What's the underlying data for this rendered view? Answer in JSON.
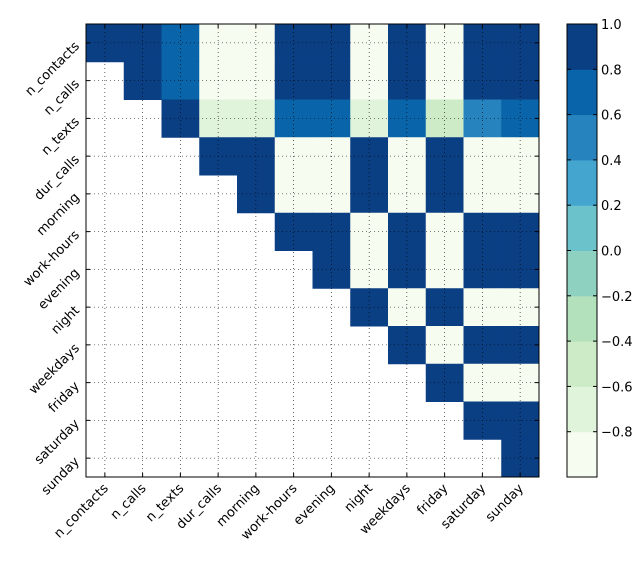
{
  "chart_data": {
    "type": "heatmap",
    "title": "",
    "x_labels": [
      "n_contacts",
      "n_calls",
      "n_texts",
      "dur_calls",
      "morning",
      "work-hours",
      "evening",
      "night",
      "weekdays",
      "friday",
      "saturday",
      "sunday"
    ],
    "y_labels": [
      "n_contacts",
      "n_calls",
      "n_texts",
      "dur_calls",
      "morning",
      "work-hours",
      "evening",
      "night",
      "weekdays",
      "friday",
      "saturday",
      "sunday"
    ],
    "values": [
      [
        1,
        0.9,
        0.7,
        -0.9,
        -0.9,
        0.9,
        0.9,
        -0.9,
        0.9,
        -0.9,
        0.9,
        0.9
      ],
      [
        null,
        1,
        0.7,
        -0.9,
        -0.9,
        0.9,
        0.9,
        -0.9,
        0.9,
        -0.9,
        0.9,
        0.9
      ],
      [
        null,
        null,
        1,
        -0.7,
        -0.7,
        0.7,
        0.7,
        -0.7,
        0.7,
        -0.5,
        0.5,
        0.7
      ],
      [
        null,
        null,
        null,
        1,
        1,
        -0.9,
        -0.9,
        0.9,
        -0.9,
        0.9,
        -0.9,
        -0.9
      ],
      [
        null,
        null,
        null,
        null,
        1,
        -0.9,
        -0.9,
        0.9,
        -0.9,
        0.9,
        -0.9,
        -0.9
      ],
      [
        null,
        null,
        null,
        null,
        null,
        1,
        1,
        -0.9,
        0.9,
        -0.9,
        0.9,
        0.9
      ],
      [
        null,
        null,
        null,
        null,
        null,
        null,
        1,
        -0.9,
        0.9,
        -0.9,
        0.9,
        0.9
      ],
      [
        null,
        null,
        null,
        null,
        null,
        null,
        null,
        1,
        -0.9,
        0.9,
        -0.9,
        -0.9
      ],
      [
        null,
        null,
        null,
        null,
        null,
        null,
        null,
        null,
        1,
        -0.9,
        0.9,
        0.9
      ],
      [
        null,
        null,
        null,
        null,
        null,
        null,
        null,
        null,
        null,
        1,
        -0.9,
        -0.9
      ],
      [
        null,
        null,
        null,
        null,
        null,
        null,
        null,
        null,
        null,
        null,
        1,
        1
      ],
      [
        null,
        null,
        null,
        null,
        null,
        null,
        null,
        null,
        null,
        null,
        null,
        1
      ]
    ],
    "vmin": -1.0,
    "vmax": 1.0,
    "grid": true,
    "colorbar": {
      "ticks": [
        "1.0",
        "0.8",
        "0.6",
        "0.4",
        "0.2",
        "0.0",
        "−0.2",
        "−0.4",
        "−0.6",
        "−0.8"
      ],
      "tick_values": [
        1.0,
        0.8,
        0.6,
        0.4,
        0.2,
        0.0,
        -0.2,
        -0.4,
        -0.6,
        -0.8
      ],
      "bins": [
        -1.0,
        -0.8,
        -0.6,
        -0.4,
        -0.2,
        0.0,
        0.2,
        0.4,
        0.6,
        0.8,
        1.0
      ],
      "colors": [
        "#f7fcf0",
        "#e0f3db",
        "#cdebc6",
        "#b3e1bb",
        "#8ed1c0",
        "#6bc2cb",
        "#44a5cf",
        "#2683bd",
        "#0964a9",
        "#0a3f84"
      ]
    }
  }
}
